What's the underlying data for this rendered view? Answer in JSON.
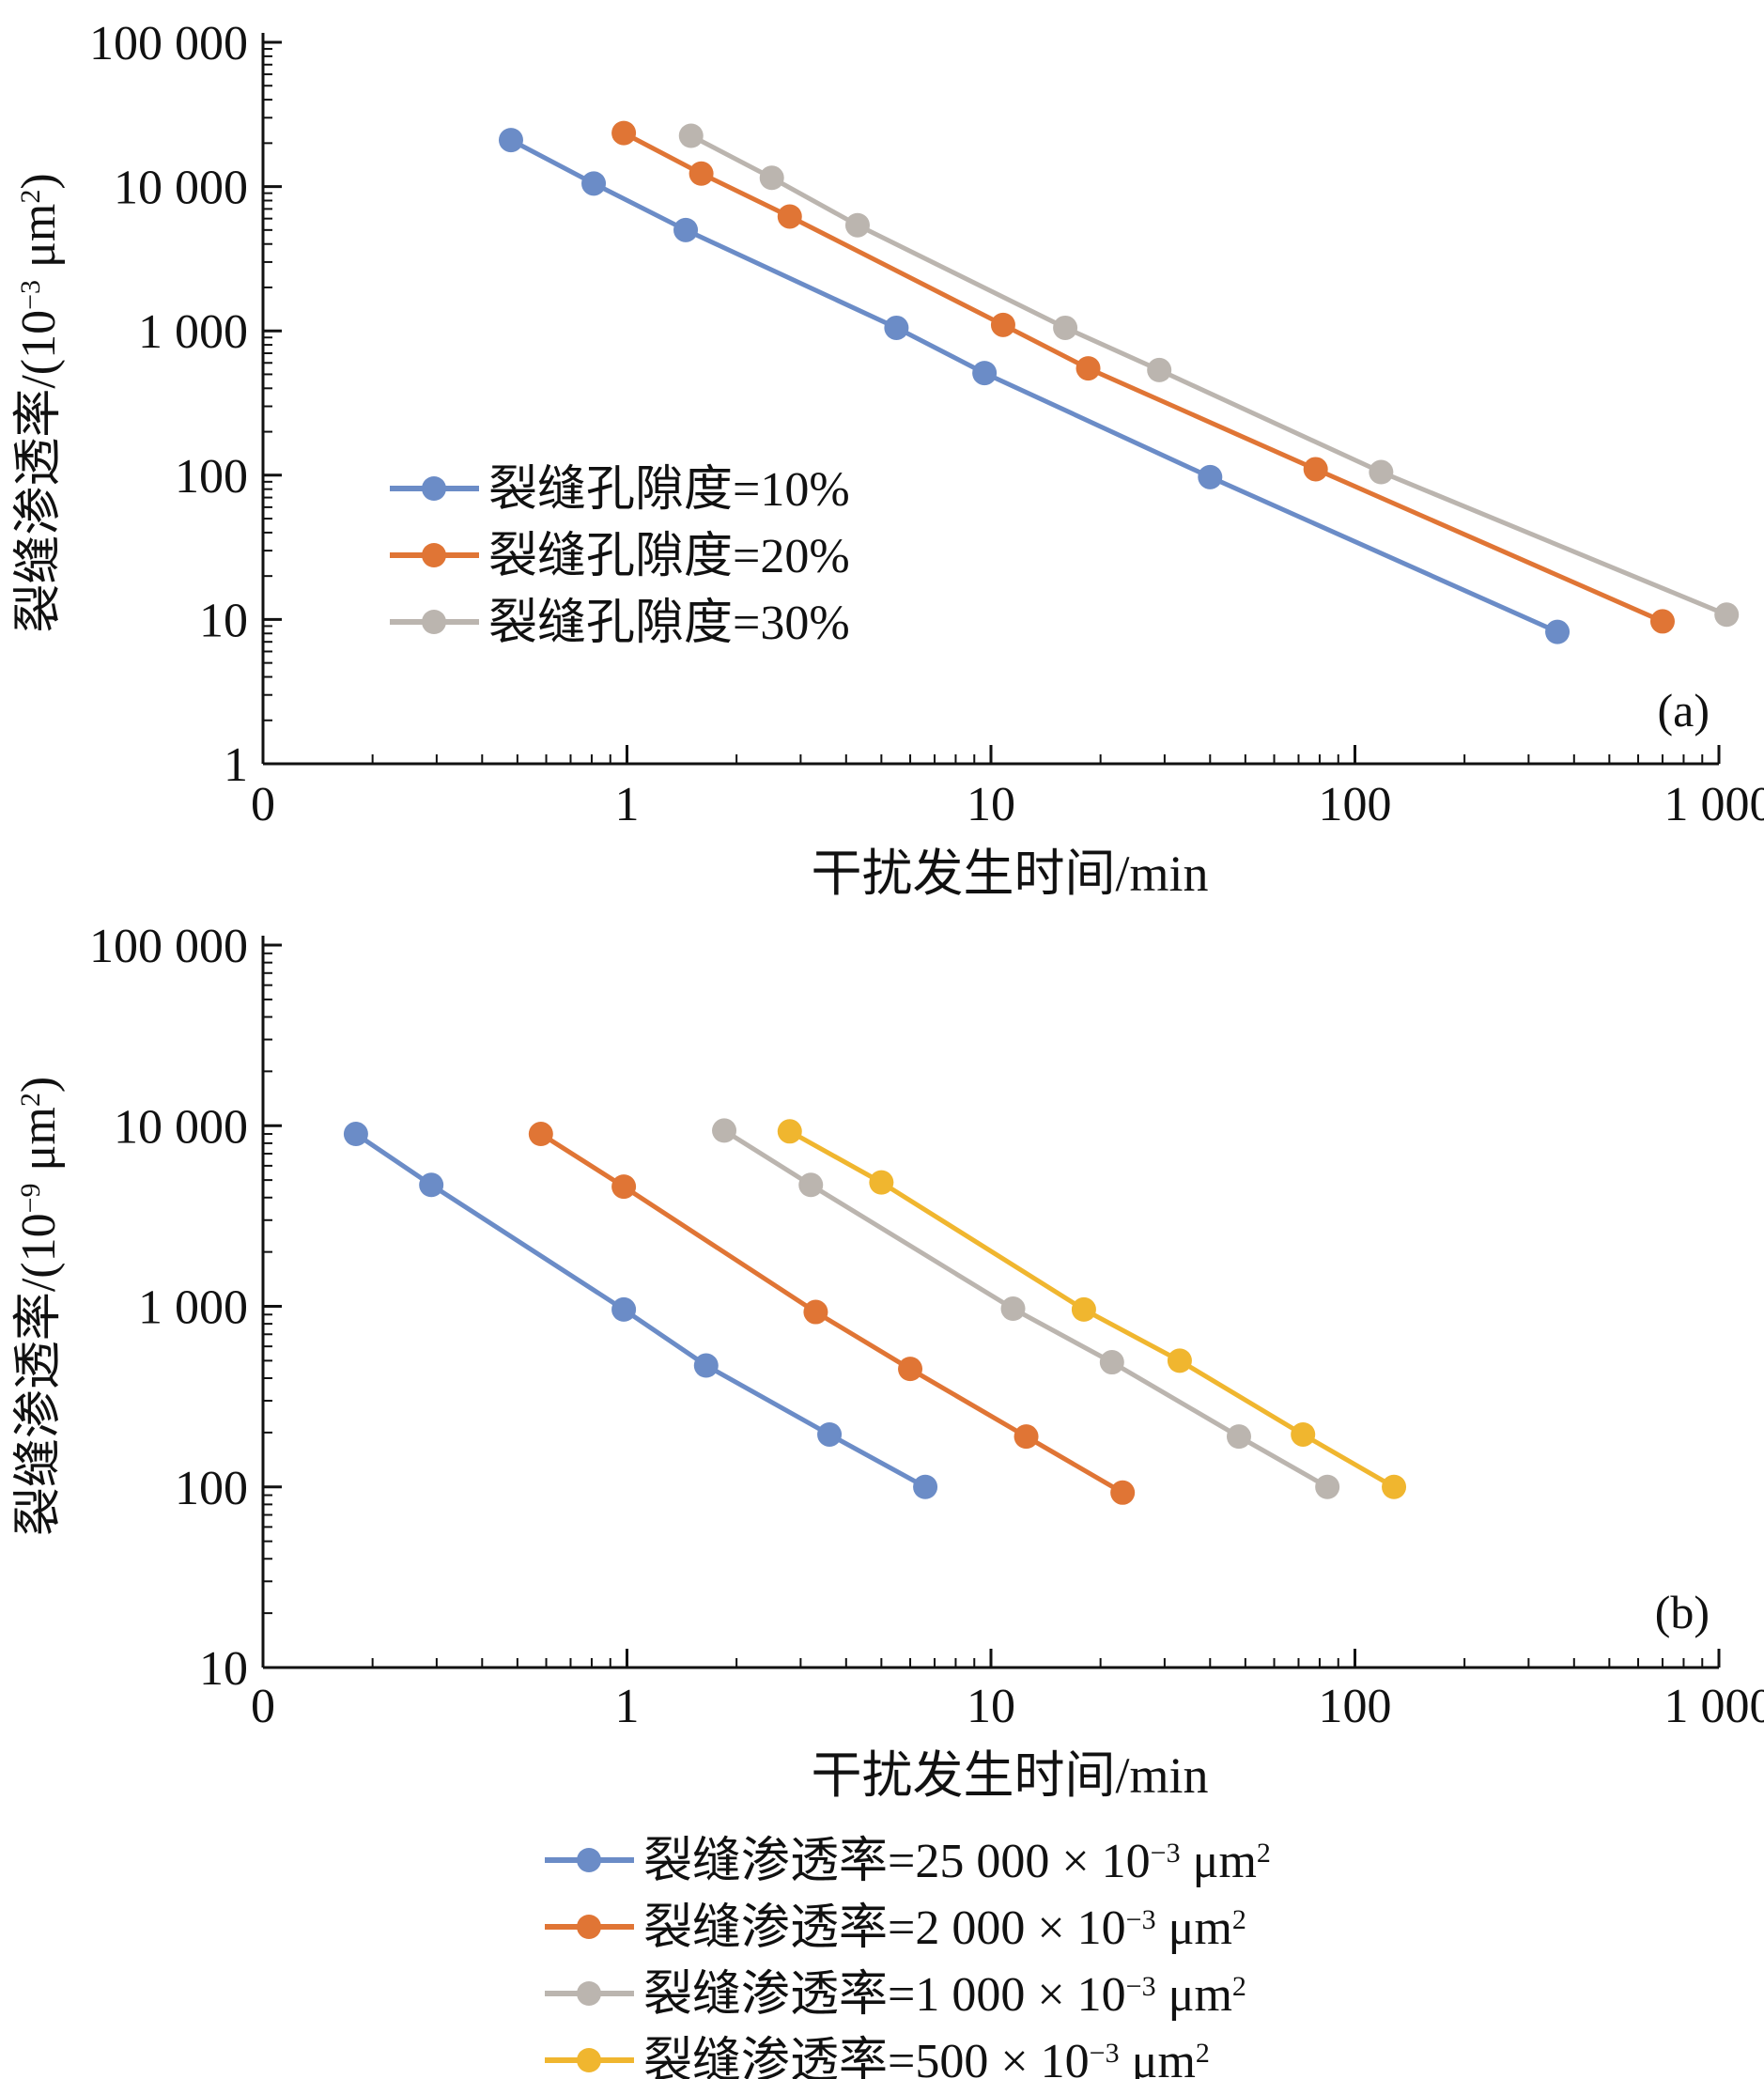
{
  "chart_data": [
    {
      "type": "line",
      "scale": "log-log",
      "panel_label": "(a)",
      "xlabel": "干扰发生时间/min",
      "ylabel_prefix": "裂缝渗透率/(10",
      "ylabel_exp": "−3",
      "ylabel_unit": " μm",
      "ylabel_unit_exp": "2",
      "ylabel_suffix": ")",
      "xlim": [
        0.1,
        1000
      ],
      "ylim": [
        1,
        100000
      ],
      "xticks": [
        {
          "v": 0.1,
          "label": "0"
        },
        {
          "v": 1,
          "label": "1"
        },
        {
          "v": 10,
          "label": "10"
        },
        {
          "v": 100,
          "label": "100"
        },
        {
          "v": 1000,
          "label": "1 000"
        }
      ],
      "yticks": [
        {
          "v": 1,
          "label": "1"
        },
        {
          "v": 10,
          "label": "10"
        },
        {
          "v": 100,
          "label": "100"
        },
        {
          "v": 1000,
          "label": "1 000"
        },
        {
          "v": 10000,
          "label": "10 000"
        },
        {
          "v": 100000,
          "label": "100 000"
        }
      ],
      "legend_position": "middle-left",
      "series": [
        {
          "name": "裂缝孔隙度=10%",
          "color": "#6B8CC7",
          "points": [
            [
              0.48,
              21000
            ],
            [
              0.81,
              10500
            ],
            [
              1.45,
              5000
            ],
            [
              5.5,
              1050
            ],
            [
              9.6,
              510
            ],
            [
              40,
              97
            ],
            [
              360,
              8.2
            ]
          ]
        },
        {
          "name": "裂缝孔隙度=20%",
          "color": "#E07535",
          "points": [
            [
              0.98,
              23500
            ],
            [
              1.6,
              12300
            ],
            [
              2.8,
              6200
            ],
            [
              10.8,
              1100
            ],
            [
              18.5,
              550
            ],
            [
              78,
              110
            ],
            [
              700,
              9.7
            ]
          ]
        },
        {
          "name": "裂缝孔隙度=30%",
          "color": "#BBB5AF",
          "points": [
            [
              1.5,
              22500
            ],
            [
              2.5,
              11500
            ],
            [
              4.3,
              5400
            ],
            [
              16,
              1050
            ],
            [
              29,
              535
            ],
            [
              118,
              105
            ],
            [
              1050,
              10.8
            ]
          ]
        }
      ]
    },
    {
      "type": "line",
      "scale": "log-log",
      "panel_label": "(b)",
      "xlabel": "干扰发生时间/min",
      "ylabel_prefix": "裂缝渗透率/(10",
      "ylabel_exp": "−9",
      "ylabel_unit": " μm",
      "ylabel_unit_exp": "2",
      "ylabel_suffix": ")",
      "xlim": [
        0.1,
        1000
      ],
      "ylim": [
        10,
        100000
      ],
      "xticks": [
        {
          "v": 0.1,
          "label": "0"
        },
        {
          "v": 1,
          "label": "1"
        },
        {
          "v": 10,
          "label": "10"
        },
        {
          "v": 100,
          "label": "100"
        },
        {
          "v": 1000,
          "label": "1 000"
        }
      ],
      "yticks": [
        {
          "v": 10,
          "label": "10"
        },
        {
          "v": 100,
          "label": "100"
        },
        {
          "v": 1000,
          "label": "1 000"
        },
        {
          "v": 10000,
          "label": "10 000"
        },
        {
          "v": 100000,
          "label": "100 000"
        }
      ],
      "legend_position": "below",
      "series": [
        {
          "name": "裂缝渗透率=25 000 × 10",
          "name_exp": "−3",
          "name_unit": " μm",
          "name_unit_exp": "2",
          "color": "#6B8CC7",
          "points": [
            [
              0.18,
              9000
            ],
            [
              0.29,
              4700
            ],
            [
              0.98,
              960
            ],
            [
              1.65,
              470
            ],
            [
              3.6,
              195
            ],
            [
              6.6,
              100
            ]
          ]
        },
        {
          "name": "裂缝渗透率=2 000 × 10",
          "name_exp": "−3",
          "name_unit": " μm",
          "name_unit_exp": "2",
          "color": "#E07535",
          "points": [
            [
              0.58,
              9000
            ],
            [
              0.98,
              4600
            ],
            [
              3.3,
              930
            ],
            [
              6.0,
              450
            ],
            [
              12.5,
              190
            ],
            [
              23,
              93
            ]
          ]
        },
        {
          "name": "裂缝渗透率=1 000 × 10",
          "name_exp": "−3",
          "name_unit": " μm",
          "name_unit_exp": "2",
          "color": "#BBB5AF",
          "points": [
            [
              1.85,
              9400
            ],
            [
              3.2,
              4700
            ],
            [
              11.5,
              970
            ],
            [
              21.5,
              490
            ],
            [
              48,
              190
            ],
            [
              84,
              100
            ]
          ]
        },
        {
          "name": "裂缝渗透率=500 × 10",
          "name_exp": "−3",
          "name_unit": " μm",
          "name_unit_exp": "2",
          "color": "#F0B62F",
          "points": [
            [
              2.8,
              9300
            ],
            [
              5.0,
              4850
            ],
            [
              18,
              960
            ],
            [
              33,
              500
            ],
            [
              72,
              195
            ],
            [
              128,
              100
            ]
          ]
        }
      ]
    }
  ]
}
